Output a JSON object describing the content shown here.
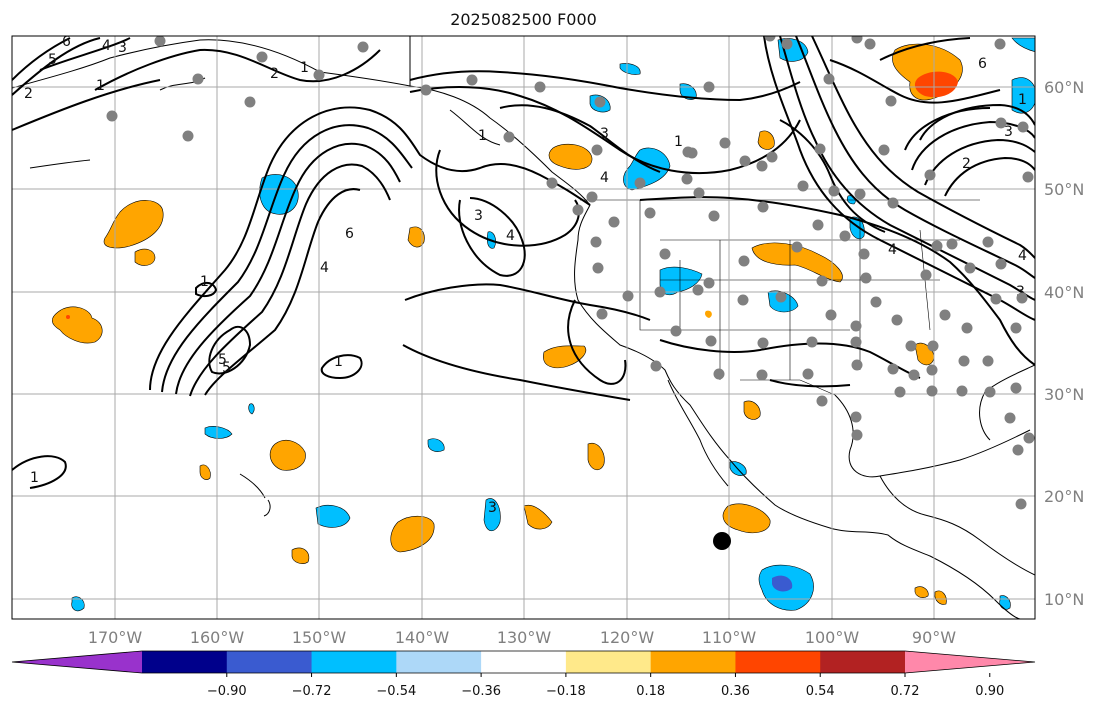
{
  "title": "2025082500 F000",
  "longitude_labels": [
    "170°W",
    "160°W",
    "150°W",
    "140°W",
    "130°W",
    "120°W",
    "110°W",
    "100°W",
    "90°W"
  ],
  "latitude_labels": [
    "60°N",
    "50°N",
    "40°N",
    "30°N",
    "20°N",
    "10°N"
  ],
  "colorbar": {
    "ticks": [
      "−0.90",
      "−0.72",
      "−0.54",
      "−0.36",
      "−0.18",
      "0.18",
      "0.36",
      "0.54",
      "0.72",
      "0.90"
    ],
    "colors": [
      "#9932cc",
      "#00008b",
      "#3a5bd0",
      "#00bfff",
      "#add8f8",
      "#ffffff",
      "#ffe98a",
      "#ffa500",
      "#ff4500",
      "#b22222",
      "#ff88aa"
    ]
  },
  "contour_labels": [
    "5",
    "6",
    "4",
    "3",
    "2",
    "1",
    "1",
    "2",
    "3",
    "4",
    "5",
    "6",
    "3",
    "4",
    "3",
    "1",
    "5",
    "1",
    "1",
    "1",
    "4",
    "1",
    "6",
    "3",
    "1",
    "2",
    "3",
    "4",
    "4"
  ],
  "colors": {
    "grid": "#a9a9a9",
    "coast": "#000000",
    "contour": "#000000",
    "station": "#808080",
    "marker": "#000000"
  }
}
